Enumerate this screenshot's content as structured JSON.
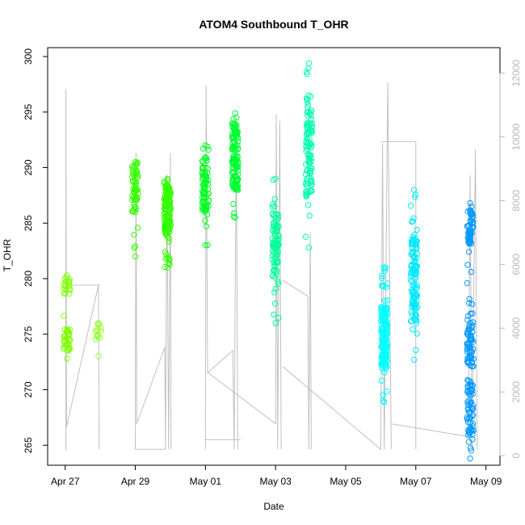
{
  "chart_data": {
    "type": "scatter",
    "title": "ATOM4 Southbound T_OHR",
    "xlabel": "Date",
    "ylabel": "T_OHR",
    "x_ticks": [
      "Apr 27",
      "Apr 29",
      "May 01",
      "May 03",
      "May 05",
      "May 07",
      "May 09"
    ],
    "y_ticks": [
      "265",
      "270",
      "275",
      "280",
      "285",
      "290",
      "295",
      "300"
    ],
    "y2_ticks": [
      "0",
      "2000",
      "4000",
      "6000",
      "8000",
      "10000",
      "12000"
    ],
    "xlim": [
      -0.5,
      12.4
    ],
    "ylim": [
      263.2,
      300.8
    ],
    "y2lim": [
      -300,
      12800
    ],
    "x_zero_date": "Apr 27",
    "colors": {
      "right_axis": "#b8b8b8",
      "altitude_line": "#c0c0c0",
      "series_palette": [
        "#80ff00",
        "#33ff00",
        "#00ff66",
        "#00ffcc",
        "#00c8ff",
        "#0099ff"
      ]
    },
    "flights": [
      {
        "x": 0.05,
        "color": "#7fff00",
        "ymin": 272.8,
        "ymax": 280.3,
        "clusters": [
          [
            273.5,
            275.5
          ],
          [
            278.5,
            280.3
          ]
        ],
        "n": 55
      },
      {
        "x": 0.95,
        "color": "#99ff33",
        "ymin": 273.0,
        "ymax": 276.0,
        "clusters": [
          [
            274.5,
            276.0
          ]
        ],
        "n": 14
      },
      {
        "x": 2.0,
        "color": "#33ff00",
        "ymin": 282.0,
        "ymax": 290.5,
        "clusters": [
          [
            286.0,
            290.5
          ]
        ],
        "n": 60
      },
      {
        "x": 2.92,
        "color": "#33ff00",
        "ymin": 281.0,
        "ymax": 289.0,
        "clusters": [
          [
            284.0,
            288.5
          ]
        ],
        "n": 140
      },
      {
        "x": 4.0,
        "color": "#00ff22",
        "ymin": 283.0,
        "ymax": 292.0,
        "clusters": [
          [
            286.0,
            291.0
          ]
        ],
        "n": 80
      },
      {
        "x": 4.85,
        "color": "#00ff33",
        "ymin": 285.5,
        "ymax": 294.9,
        "clusters": [
          [
            288.0,
            294.0
          ]
        ],
        "n": 120
      },
      {
        "x": 6.0,
        "color": "#00ff99",
        "ymin": 276.0,
        "ymax": 289.0,
        "clusters": [
          [
            280.0,
            286.0
          ]
        ],
        "n": 90
      },
      {
        "x": 6.95,
        "color": "#00ffb0",
        "ymin": 282.8,
        "ymax": 299.4,
        "clusters": [
          [
            287.0,
            296.5
          ]
        ],
        "n": 110
      },
      {
        "x": 9.1,
        "color": "#00ffff",
        "ymin": 268.9,
        "ymax": 281.0,
        "clusters": [
          [
            272.0,
            277.5
          ]
        ],
        "n": 170
      },
      {
        "x": 9.95,
        "color": "#00e8ff",
        "ymin": 272.7,
        "ymax": 288.0,
        "clusters": [
          [
            276.0,
            284.0
          ]
        ],
        "n": 120
      },
      {
        "x": 11.55,
        "color": "#0099ff",
        "ymin": 263.8,
        "ymax": 286.8,
        "clusters": [
          [
            283.0,
            286.5
          ],
          [
            272.0,
            276.0
          ],
          [
            266.0,
            271.0
          ]
        ],
        "n": 180
      }
    ],
    "altitude_segments": [
      [
        [
          0.02,
          150
        ],
        [
          0.02,
          11500
        ],
        [
          0.04,
          900
        ],
        [
          0.06,
          1000
        ],
        [
          0.95,
          5350
        ],
        [
          0.97,
          200
        ],
        [
          0.97,
          1000
        ]
      ],
      [
        [
          1.0,
          5350
        ],
        [
          0.02,
          5350
        ]
      ],
      [
        [
          2.0,
          200
        ],
        [
          2.02,
          9500
        ],
        [
          2.04,
          1000
        ],
        [
          2.84,
          3400
        ],
        [
          2.86,
          200
        ],
        [
          2.9,
          8800
        ],
        [
          2.95,
          200
        ],
        [
          3.0,
          9500
        ],
        [
          3.02,
          200
        ]
      ],
      [
        [
          2.0,
          200
        ],
        [
          2.86,
          200
        ]
      ],
      [
        [
          4.0,
          200
        ],
        [
          4.02,
          11600
        ],
        [
          4.06,
          2600
        ],
        [
          4.78,
          3300
        ],
        [
          4.82,
          200
        ],
        [
          4.88,
          10400
        ],
        [
          4.92,
          200
        ]
      ],
      [
        [
          4.0,
          500
        ],
        [
          5.0,
          500
        ]
      ],
      [
        [
          4.08,
          2600
        ],
        [
          6.0,
          1000
        ],
        [
          6.02,
          10700
        ],
        [
          6.06,
          200
        ],
        [
          6.12,
          10500
        ],
        [
          6.16,
          200
        ]
      ],
      [
        [
          6.2,
          5500
        ],
        [
          6.92,
          5000
        ],
        [
          6.95,
          200
        ],
        [
          6.99,
          7000
        ],
        [
          7.02,
          200
        ]
      ],
      [
        [
          6.2,
          2800
        ],
        [
          9.0,
          200
        ],
        [
          9.05,
          9800
        ],
        [
          9.1,
          200
        ],
        [
          9.2,
          11700
        ],
        [
          9.3,
          200
        ]
      ],
      [
        [
          9.0,
          9850
        ],
        [
          10.0,
          9850
        ],
        [
          10.0,
          200
        ]
      ],
      [
        [
          9.3,
          1000
        ],
        [
          11.5,
          600
        ],
        [
          11.55,
          8800
        ],
        [
          11.6,
          200
        ],
        [
          11.7,
          9600
        ],
        [
          11.75,
          200
        ]
      ]
    ]
  }
}
